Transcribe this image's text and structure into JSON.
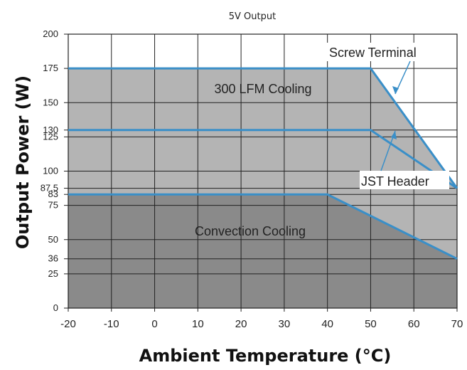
{
  "chart_data": {
    "type": "area",
    "title": "5V Output",
    "xlabel": "Ambient Temperature (°C)",
    "ylabel": "Output Power (W)",
    "xlim": [
      -20,
      70
    ],
    "ylim": [
      0,
      200
    ],
    "x_ticks": [
      -20,
      -10,
      0,
      10,
      20,
      30,
      40,
      50,
      60,
      70
    ],
    "y_ticks": [
      0,
      25,
      36,
      50,
      75,
      83,
      87.5,
      100,
      125,
      130,
      150,
      175,
      200
    ],
    "grid": true,
    "series": [
      {
        "name": "300 LFM Cooling",
        "x": [
          -20,
          50,
          70
        ],
        "y": [
          175,
          175,
          87.5
        ]
      },
      {
        "name": "JST Header",
        "x": [
          -20,
          50,
          70
        ],
        "y": [
          130,
          130,
          87.5
        ]
      },
      {
        "name": "Convection Cooling",
        "x": [
          -20,
          40,
          70
        ],
        "y": [
          83,
          83,
          36
        ]
      }
    ],
    "annotations": [
      {
        "text": "Screw Terminal"
      },
      {
        "text": "JST Header"
      },
      {
        "text": "300 LFM Cooling"
      },
      {
        "text": "Convection Cooling"
      }
    ],
    "colors": {
      "curve": "#3a8fc8",
      "upper_fill": "#b4b4b4",
      "lower_fill": "#8a8a8a",
      "grid": "#222222"
    }
  }
}
